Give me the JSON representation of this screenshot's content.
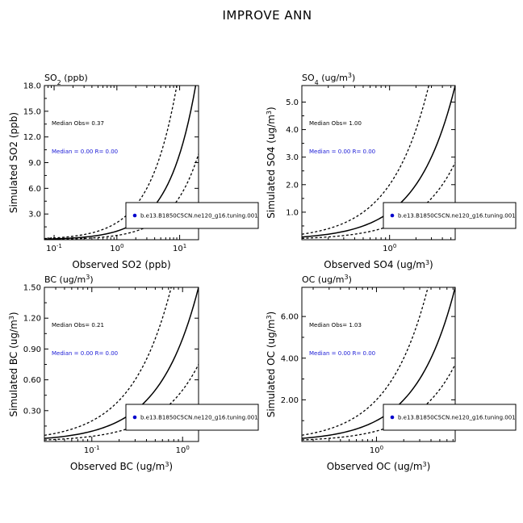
{
  "figure": {
    "title": "IMPROVE ANN"
  },
  "chart_data": [
    {
      "type": "scatter",
      "title_base": "SO",
      "title_sub": "2",
      "title_rest": " (ppb)",
      "xlabel": "Observed SO2 (ppb)",
      "ylabel": "Simulated SO2 (ppb)",
      "x_scale": "log",
      "xlim": [
        0.07,
        20
      ],
      "x_ticks": [
        {
          "value": 0.1,
          "base": "10",
          "exp": "-1"
        },
        {
          "value": 1,
          "base": "10",
          "exp": "0"
        },
        {
          "value": 10,
          "base": "10",
          "exp": "1"
        }
      ],
      "ylim": [
        0,
        18
      ],
      "y_ticks": [
        "3.0",
        "6.0",
        "9.0",
        "12.0",
        "15.0",
        "18.0"
      ],
      "median_obs_text": "Median Obs= 0.37",
      "median_sim_text": "Median = 0.00 R= 0.00",
      "legend": {
        "label": "b.e13.B1850C5CN.ne120_g16.tuning.001",
        "marker_color": "#0000cc"
      },
      "lines": [
        "1:1",
        "2:1",
        "1:2"
      ]
    },
    {
      "type": "scatter",
      "title_base": "SO",
      "title_sub": "4",
      "title_rest": " (ug/m",
      "title_sup": "3",
      "title_end": ")",
      "xlabel": "Observed SO4 (ug/m3)",
      "ylabel": "Simulated SO4 (ug/m3)",
      "x_scale": "log",
      "xlim": [
        0.1,
        5.6
      ],
      "x_ticks": [
        {
          "value": 1,
          "base": "10",
          "exp": "0"
        }
      ],
      "ylim": [
        0,
        5.6
      ],
      "y_ticks": [
        "1.0",
        "2.0",
        "3.0",
        "4.0",
        "5.0"
      ],
      "median_obs_text": "Median Obs= 1.00",
      "median_sim_text": "Median = 0.00 R= 0.00",
      "legend": {
        "label": "b.e13.B1850C5CN.ne120_g16.tuning.001",
        "marker_color": "#0000cc"
      },
      "lines": [
        "1:1",
        "2:1",
        "1:2"
      ]
    },
    {
      "type": "scatter",
      "title_base": "BC",
      "title_rest": " (ug/m",
      "title_sup": "3",
      "title_end": ")",
      "xlabel": "Observed BC (ug/m3)",
      "ylabel": "Simulated BC (ug/m3)",
      "x_scale": "log",
      "xlim": [
        0.03,
        1.5
      ],
      "x_ticks": [
        {
          "value": 0.1,
          "base": "10",
          "exp": "-1"
        },
        {
          "value": 1,
          "base": "10",
          "exp": "0"
        }
      ],
      "ylim": [
        0,
        1.5
      ],
      "y_ticks": [
        "0.30",
        "0.60",
        "0.90",
        "1.20",
        "1.50"
      ],
      "median_obs_text": "Median Obs= 0.21",
      "median_sim_text": "Median = 0.00 R= 0.00",
      "legend": {
        "label": "b.e13.B1850C5CN.ne120_g16.tuning.001",
        "marker_color": "#0000cc"
      },
      "lines": [
        "1:1",
        "2:1",
        "1:2"
      ]
    },
    {
      "type": "scatter",
      "title_base": "OC",
      "title_rest": " (ug/m",
      "title_sup": "3",
      "title_end": ")",
      "xlabel": "Observed OC (ug/m3)",
      "ylabel": "Simulated OC (ug/m3)",
      "x_scale": "log",
      "xlim": [
        0.15,
        7.4
      ],
      "x_ticks": [
        {
          "value": 1,
          "base": "10",
          "exp": "0"
        }
      ],
      "ylim": [
        0,
        7.4
      ],
      "y_ticks": [
        "2.00",
        "4.00",
        "6.00"
      ],
      "median_obs_text": "Median Obs= 1.03",
      "median_sim_text": "Median = 0.00 R= 0.00",
      "legend": {
        "label": "b.e13.B1850C5CN.ne120_g16.tuning.001",
        "marker_color": "#0000cc"
      },
      "lines": [
        "1:1",
        "2:1",
        "1:2"
      ]
    }
  ]
}
